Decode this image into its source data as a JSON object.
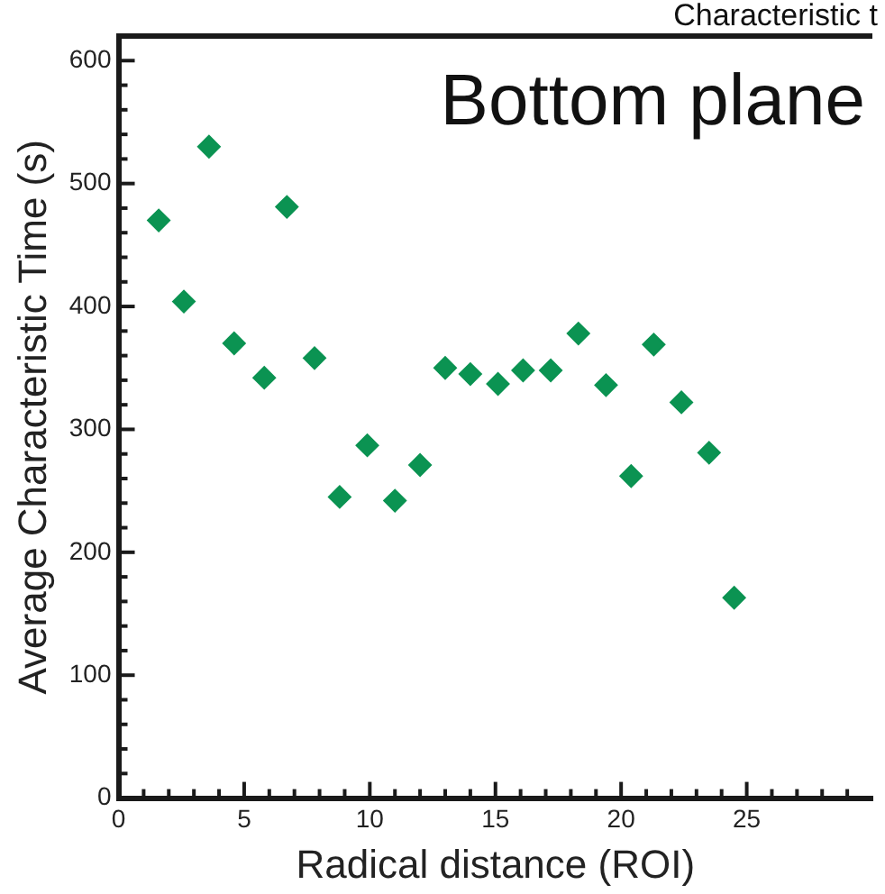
{
  "chart_data": {
    "type": "scatter",
    "title": "Characteristic t",
    "xlabel": "Radical distance (ROI)",
    "ylabel": "Average Characteristic Time (s)",
    "annotations": [
      "Bottom plane"
    ],
    "x": [
      1.6,
      2.6,
      3.6,
      4.6,
      5.8,
      6.7,
      7.8,
      8.8,
      9.9,
      11.0,
      12.0,
      13.0,
      14.0,
      15.1,
      16.1,
      17.2,
      18.3,
      19.4,
      20.4,
      21.3,
      22.4,
      23.5,
      24.5
    ],
    "series": [
      {
        "color": "#0b9352",
        "values": [
          470,
          404,
          530,
          370,
          342,
          481,
          358,
          245,
          287,
          242,
          271,
          350,
          345,
          337,
          348,
          348,
          378,
          336,
          262,
          369,
          322,
          281,
          163
        ]
      }
    ],
    "marker": "diamond",
    "grid": false,
    "legend": false,
    "xlim": [
      0,
      30
    ],
    "ylim": [
      0,
      620
    ],
    "xticks": [
      0,
      {
        "value": 1,
        "label": null
      },
      {
        "value": 2,
        "label": null
      },
      {
        "value": 3,
        "label": null
      },
      {
        "value": 4,
        "label": null
      },
      5,
      {
        "value": 6,
        "label": null
      },
      {
        "value": 7,
        "label": null
      },
      {
        "value": 8,
        "label": null
      },
      {
        "value": 9,
        "label": null
      },
      10,
      {
        "value": 11,
        "label": null
      },
      {
        "value": 12,
        "label": null
      },
      {
        "value": 13,
        "label": null
      },
      {
        "value": 14,
        "label": null
      },
      15,
      {
        "value": 16,
        "label": null
      },
      {
        "value": 17,
        "label": null
      },
      {
        "value": 18,
        "label": null
      },
      {
        "value": 19,
        "label": null
      },
      20,
      {
        "value": 21,
        "label": null
      },
      {
        "value": 22,
        "label": null
      },
      {
        "value": 23,
        "label": null
      },
      {
        "value": 24,
        "label": null
      },
      25,
      {
        "value": 26,
        "label": null
      },
      {
        "value": 27,
        "label": null
      },
      {
        "value": 28,
        "label": null
      },
      {
        "value": 29,
        "label": null
      }
    ],
    "yticks": [
      0,
      {
        "value": 20,
        "label": null
      },
      {
        "value": 40,
        "label": null
      },
      {
        "value": 60,
        "label": null
      },
      {
        "value": 80,
        "label": null
      },
      100,
      {
        "value": 120,
        "label": null
      },
      {
        "value": 140,
        "label": null
      },
      {
        "value": 160,
        "label": null
      },
      {
        "value": 180,
        "label": null
      },
      200,
      {
        "value": 220,
        "label": null
      },
      {
        "value": 240,
        "label": null
      },
      {
        "value": 260,
        "label": null
      },
      {
        "value": 280,
        "label": null
      },
      300,
      {
        "value": 320,
        "label": null
      },
      {
        "value": 340,
        "label": null
      },
      {
        "value": 360,
        "label": null
      },
      {
        "value": 380,
        "label": null
      },
      400,
      {
        "value": 420,
        "label": null
      },
      {
        "value": 440,
        "label": null
      },
      {
        "value": 460,
        "label": null
      },
      {
        "value": 480,
        "label": null
      },
      500,
      {
        "value": 520,
        "label": null
      },
      {
        "value": 540,
        "label": null
      },
      {
        "value": 560,
        "label": null
      },
      {
        "value": 580,
        "label": null
      },
      600
    ]
  }
}
